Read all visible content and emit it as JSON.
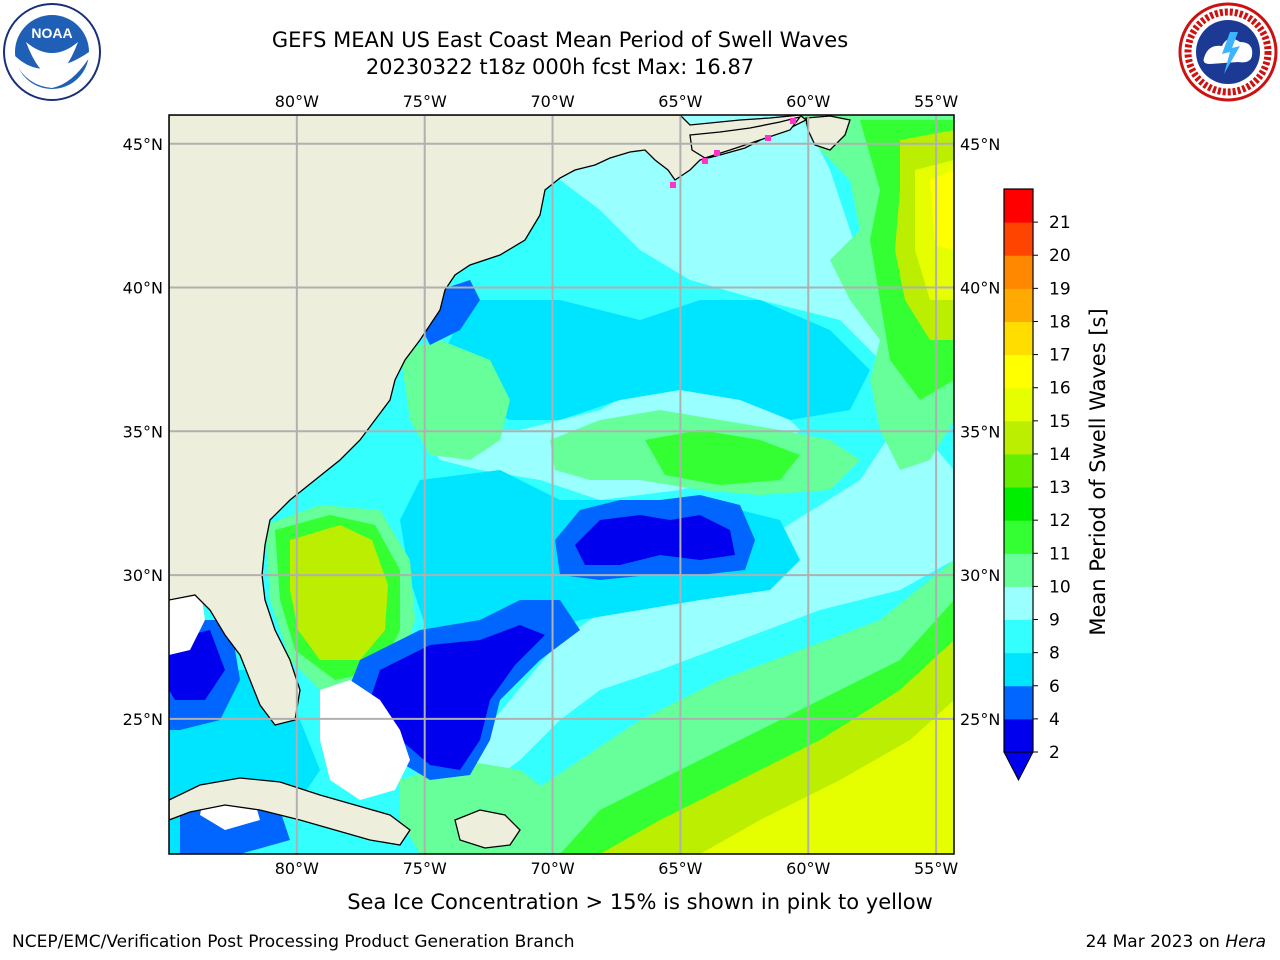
{
  "title": {
    "line1": "GEFS MEAN US East Coast Mean Period of Swell Waves",
    "line2": "20230322 t18z 000h fcst   Max: 16.87"
  },
  "logos": {
    "left": {
      "name": "noaa-logo",
      "text": "NOAA",
      "ring_text": "NATIONAL OCEANIC AND ATMOSPHERIC ADMINISTRATION · U.S. DEPARTMENT OF COMMERCE"
    },
    "right": {
      "name": "nws-logo",
      "ring_text": "NATIONAL WEATHER SERVICE"
    }
  },
  "map": {
    "projection": "equirectangular",
    "lon_range": [
      -85,
      -54.3
    ],
    "lat_range": [
      20.3,
      46
    ],
    "lon_ticks": [
      {
        "value": -80,
        "label": "80°W"
      },
      {
        "value": -75,
        "label": "75°W"
      },
      {
        "value": -70,
        "label": "70°W"
      },
      {
        "value": -65,
        "label": "65°W"
      },
      {
        "value": -60,
        "label": "60°W"
      },
      {
        "value": -55,
        "label": "55°W"
      }
    ],
    "lat_ticks": [
      {
        "value": 45,
        "label": "45°N"
      },
      {
        "value": 40,
        "label": "40°N"
      },
      {
        "value": 35,
        "label": "35°N"
      },
      {
        "value": 30,
        "label": "30°N"
      },
      {
        "value": 25,
        "label": "25°N"
      }
    ],
    "grid": true,
    "colors": {
      "land": "#eeeedd",
      "coastline": "#000000",
      "grid": "#b0b0b0",
      "ice": "#ff33cc",
      "no_data": "#ffffff"
    }
  },
  "colorbar": {
    "label": "Mean Period of Swell Waves [s]",
    "levels": [
      2,
      4,
      6,
      8,
      9,
      10,
      11,
      12,
      13,
      14,
      15,
      16,
      17,
      18,
      19,
      20,
      21
    ],
    "colors": [
      "#0000ee",
      "#0066ff",
      "#00e5ff",
      "#33ffff",
      "#99ffff",
      "#66ff99",
      "#33ff33",
      "#00ee00",
      "#66ee00",
      "#bbee00",
      "#e6ff00",
      "#ffff00",
      "#ffdd00",
      "#ffaa00",
      "#ff8800",
      "#ff4400",
      "#ff0000"
    ],
    "extend": "min",
    "tick_labels": [
      "2",
      "4",
      "6",
      "8",
      "9",
      "10",
      "11",
      "12",
      "13",
      "14",
      "15",
      "16",
      "17",
      "18",
      "19",
      "20",
      "21"
    ]
  },
  "footnote": "Sea Ice Concentration > 15% is shown in pink to yellow",
  "credit": "NCEP/EMC/Verification Post Processing Product Generation Branch",
  "stamp": {
    "date": "24 Mar 2023 on ",
    "host": "Hera"
  }
}
